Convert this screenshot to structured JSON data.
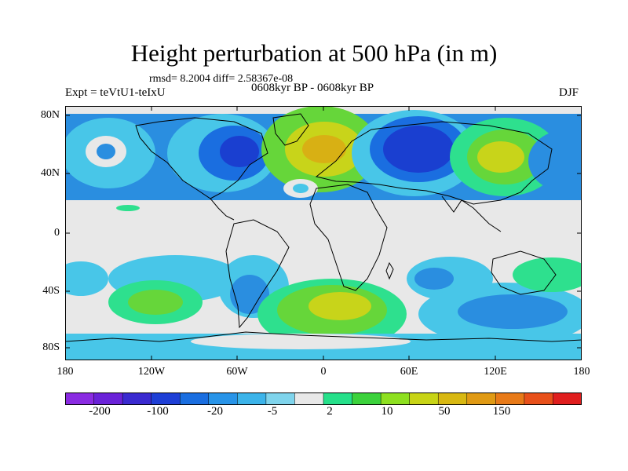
{
  "title": "Height perturbation at 500 hPa (in m)",
  "stats": "rmsd= 8.2004 diff= 2.58367e-08",
  "experiment": "Expt = teVtU1-teIxU",
  "period": "0608kyr BP - 0608kyr BP",
  "season": "DJF",
  "lat_labels": [
    "80N",
    "40N",
    "0",
    "40S",
    "80S"
  ],
  "lon_labels": [
    "180",
    "120W",
    "60W",
    "0",
    "60E",
    "120E",
    "180"
  ],
  "colorbar": {
    "colors": [
      "#8a2be2",
      "#6a22d8",
      "#3a2ad0",
      "#1e3fd6",
      "#1a6ee0",
      "#2894e8",
      "#3cb4ea",
      "#7fd4ec",
      "#e8e8e8",
      "#26e08a",
      "#3cd23c",
      "#8ee020",
      "#c8d416",
      "#d8b812",
      "#e09a14",
      "#e87a18",
      "#e8501a",
      "#e01e1e"
    ],
    "tick_labels": [
      "-200",
      "-100",
      "-20",
      "-5",
      "2",
      "10",
      "50",
      "150"
    ]
  },
  "colors": {
    "deep_negative": "#1a3fd0",
    "negative": "#2a8ee0",
    "slight_negative": "#48c6e8",
    "neutral": "#e8e8e8",
    "slight_positive": "#2ee08e",
    "positive": "#66d63a",
    "high_positive": "#c8d41a",
    "peak": "#d8b014"
  }
}
